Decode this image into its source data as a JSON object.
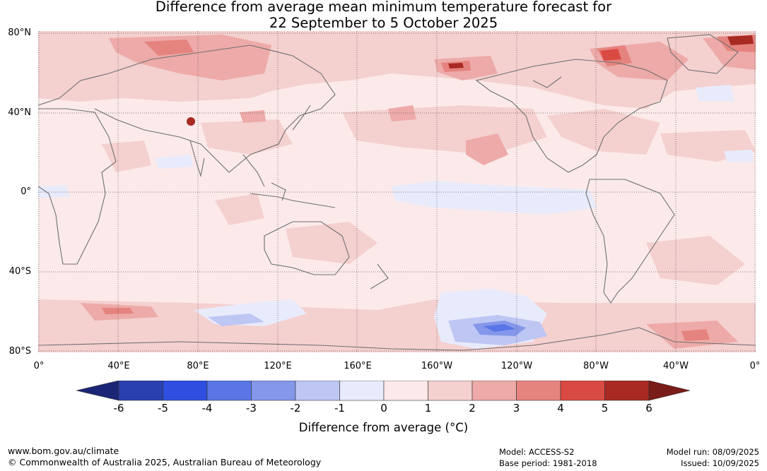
{
  "title_line1": "Difference from average mean minimum temperature forecast for",
  "title_line2": "22 September to 5 October 2025",
  "map": {
    "lat_labels": [
      "80°N",
      "40°N",
      "0°",
      "40°S",
      "80°S"
    ],
    "lon_labels": [
      "0°",
      "40°E",
      "80°E",
      "120°E",
      "160°E",
      "160°W",
      "120°W",
      "80°W",
      "40°W",
      "0°"
    ],
    "projection": "equirectangular, 0° to 360° longitude, 80°S to 80°N",
    "gridlines": "dotted"
  },
  "colorbar": {
    "title": "Difference from average (°C)",
    "ticks": [
      "-6",
      "-5",
      "-4",
      "-3",
      "-2",
      "-1",
      "0",
      "1",
      "2",
      "3",
      "4",
      "5",
      "6"
    ],
    "under_color": "#1a2575",
    "over_color": "#7a1c18",
    "colors": [
      "#2a3fb0",
      "#2f4fe0",
      "#5a76e6",
      "#8597ea",
      "#bec6f3",
      "#e8ebfb",
      "#fceaea",
      "#f4d0cf",
      "#edaaa8",
      "#e5837e",
      "#d94a42",
      "#a82a23"
    ]
  },
  "footer": {
    "url": "www.bom.gov.au/climate",
    "copyright": "© Commonwealth of Australia 2025, Australian Bureau of Meteorology",
    "model": "Model: ACCESS-S2",
    "base_period": "Base period: 1981-2018",
    "model_run": "Model run: 08/09/2025",
    "issued": "Issued: 10/09/2025"
  }
}
